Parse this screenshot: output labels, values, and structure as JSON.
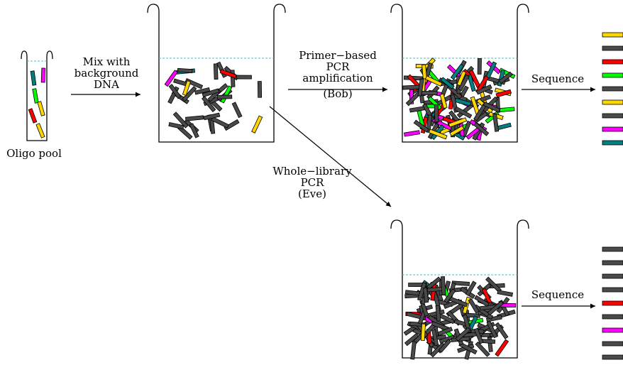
{
  "labels": {
    "oligo_pool": "Oligo pool",
    "mix": [
      "Mix with",
      "background",
      "DNA"
    ],
    "primer": [
      "Primer−based",
      "PCR",
      "amplification",
      "(Bob)"
    ],
    "whole": [
      "Whole−library",
      "PCR",
      "(Eve)"
    ],
    "sequence_top": "Sequence",
    "sequence_bottom": "Sequence"
  },
  "colors": {
    "background_dna": "#4a4a4a",
    "oligos": [
      "#008080",
      "#ff00ff",
      "#00ff00",
      "#ff0000",
      "#ffd700"
    ],
    "liquid_line": "#40c0c0",
    "outline": "#000000"
  },
  "output_top_colors": [
    "#ffd700",
    "#4a4a4a",
    "#ff0000",
    "#00ff00",
    "#4a4a4a",
    "#ffd700",
    "#4a4a4a",
    "#ff00ff",
    "#008080"
  ],
  "output_bottom_colors": [
    "#4a4a4a",
    "#4a4a4a",
    "#4a4a4a",
    "#4a4a4a",
    "#ff0000",
    "#4a4a4a",
    "#ff00ff",
    "#4a4a4a",
    "#4a4a4a"
  ]
}
